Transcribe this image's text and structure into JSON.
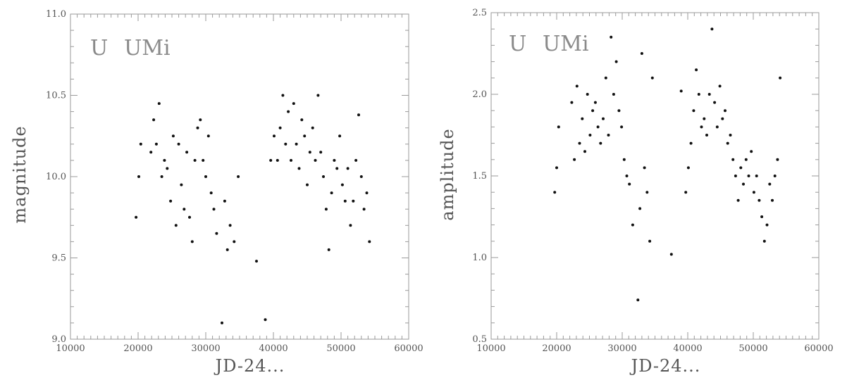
{
  "chart_data": [
    {
      "type": "scatter",
      "title": "U UMi",
      "title_parts": [
        "U",
        "UMi"
      ],
      "xlabel": "JD-24...",
      "ylabel": "magnitude",
      "xlim": [
        10000,
        60000
      ],
      "ylim": [
        9.0,
        11.0
      ],
      "x_ticks": [
        10000,
        20000,
        30000,
        40000,
        50000,
        60000
      ],
      "y_ticks": [
        9.0,
        9.5,
        10.0,
        10.5,
        11.0
      ],
      "y_tick_labels": [
        "9.0",
        "9.5",
        "10.0",
        "10.5",
        "11.0"
      ],
      "grid": false,
      "legend": "none",
      "series": [
        {
          "x": [
            19700,
            20100,
            20400,
            21900,
            22300,
            22700,
            23100,
            23500,
            23900,
            24300,
            24800,
            25200,
            25600,
            26000,
            26400,
            26800,
            27200,
            27600,
            28000,
            28400,
            28800,
            29200,
            29600,
            30000,
            30400,
            30800,
            31200,
            31600,
            32400,
            32800,
            33200,
            33600,
            34200,
            34800,
            37500,
            38800,
            39600,
            40100,
            40600,
            41000,
            41400,
            41800,
            42200,
            42600,
            43000,
            43400,
            43800,
            44200,
            44600,
            45000,
            45400,
            45800,
            46200,
            46600,
            47000,
            47400,
            47800,
            48200,
            48600,
            49000,
            49400,
            49800,
            50200,
            50600,
            51000,
            51400,
            51800,
            52200,
            52600,
            53000,
            53400,
            53800,
            54200
          ],
          "y": [
            9.75,
            10.0,
            10.2,
            10.15,
            10.35,
            10.2,
            10.45,
            10.0,
            10.1,
            10.05,
            9.85,
            10.25,
            9.7,
            10.2,
            9.95,
            9.8,
            10.15,
            9.75,
            9.6,
            10.1,
            10.3,
            10.35,
            10.1,
            10.0,
            10.25,
            9.9,
            9.8,
            9.65,
            9.1,
            9.85,
            9.55,
            9.7,
            9.6,
            10.0,
            9.48,
            9.12,
            10.1,
            10.25,
            10.1,
            10.3,
            10.5,
            10.2,
            10.4,
            10.1,
            10.45,
            10.2,
            10.05,
            10.35,
            10.25,
            9.95,
            10.15,
            10.3,
            10.1,
            10.5,
            10.15,
            10.0,
            9.8,
            9.55,
            9.9,
            10.1,
            10.05,
            10.25,
            9.95,
            9.85,
            10.05,
            9.7,
            9.85,
            10.1,
            10.38,
            10.0,
            9.8,
            9.9,
            9.6
          ]
        }
      ]
    },
    {
      "type": "scatter",
      "title": "U UMi",
      "title_parts": [
        "U",
        "UMi"
      ],
      "xlabel": "JD-24...",
      "ylabel": "amplitude",
      "xlim": [
        10000,
        60000
      ],
      "ylim": [
        0.5,
        2.5
      ],
      "x_ticks": [
        10000,
        20000,
        30000,
        40000,
        50000,
        60000
      ],
      "y_ticks": [
        0.5,
        1.0,
        1.5,
        2.0,
        2.5
      ],
      "y_tick_labels": [
        "0.5",
        "1.0",
        "1.5",
        "2.0",
        "2.5"
      ],
      "grid": false,
      "legend": "none",
      "series": [
        {
          "x": [
            19700,
            20000,
            20300,
            22300,
            22700,
            23100,
            23500,
            23900,
            24300,
            24700,
            25100,
            25500,
            25900,
            26300,
            26700,
            27100,
            27500,
            27900,
            28300,
            28700,
            29100,
            29500,
            29900,
            30300,
            30700,
            31100,
            31600,
            32400,
            32700,
            33000,
            33400,
            33800,
            34200,
            34600,
            37500,
            39000,
            39700,
            40100,
            40500,
            40900,
            41300,
            41700,
            42100,
            42500,
            42900,
            43300,
            43700,
            44100,
            44500,
            44900,
            45300,
            45700,
            46100,
            46500,
            46900,
            47300,
            47700,
            48100,
            48500,
            48900,
            49300,
            49700,
            50100,
            50500,
            50900,
            51300,
            51700,
            52100,
            52500,
            52900,
            53300,
            53700,
            54100
          ],
          "y": [
            1.4,
            1.55,
            1.8,
            1.95,
            1.6,
            2.05,
            1.7,
            1.85,
            1.65,
            2.0,
            1.75,
            1.9,
            1.95,
            1.8,
            1.7,
            1.85,
            2.1,
            1.75,
            2.35,
            2.0,
            2.2,
            1.9,
            1.8,
            1.6,
            1.5,
            1.45,
            1.2,
            0.74,
            1.3,
            2.25,
            1.55,
            1.4,
            1.1,
            2.1,
            1.02,
            2.02,
            1.4,
            1.55,
            1.7,
            1.9,
            2.15,
            2.0,
            1.8,
            1.85,
            1.75,
            2.0,
            2.4,
            1.95,
            1.8,
            2.05,
            1.85,
            1.9,
            1.7,
            1.75,
            1.6,
            1.5,
            1.35,
            1.55,
            1.45,
            1.6,
            1.5,
            1.65,
            1.4,
            1.5,
            1.35,
            1.25,
            1.1,
            1.2,
            1.45,
            1.35,
            1.5,
            1.6,
            2.1
          ]
        }
      ]
    }
  ]
}
